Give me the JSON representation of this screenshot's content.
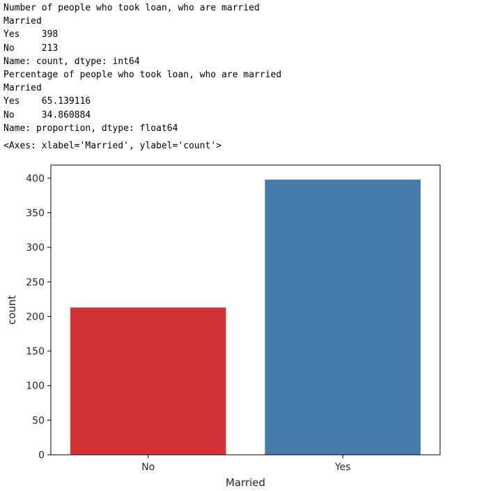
{
  "output": {
    "lines": [
      "Number of people who took loan, who are married",
      "Married",
      "Yes    398",
      "No     213",
      "Name: count, dtype: int64",
      "Percentage of people who took loan, who are married",
      "Married",
      "Yes    65.139116",
      "No     34.860884",
      "Name: proportion, dtype: float64"
    ],
    "repr": "<Axes: xlabel='Married', ylabel='count'>"
  },
  "chart_data": {
    "type": "bar",
    "categories": [
      "No",
      "Yes"
    ],
    "values": [
      213,
      398
    ],
    "colors": [
      "#d33336",
      "#467cab"
    ],
    "xlabel": "Married",
    "ylabel": "count",
    "ylim": [
      0,
      419
    ],
    "yticks": [
      0,
      50,
      100,
      150,
      200,
      250,
      300,
      350,
      400
    ],
    "grid": false
  }
}
